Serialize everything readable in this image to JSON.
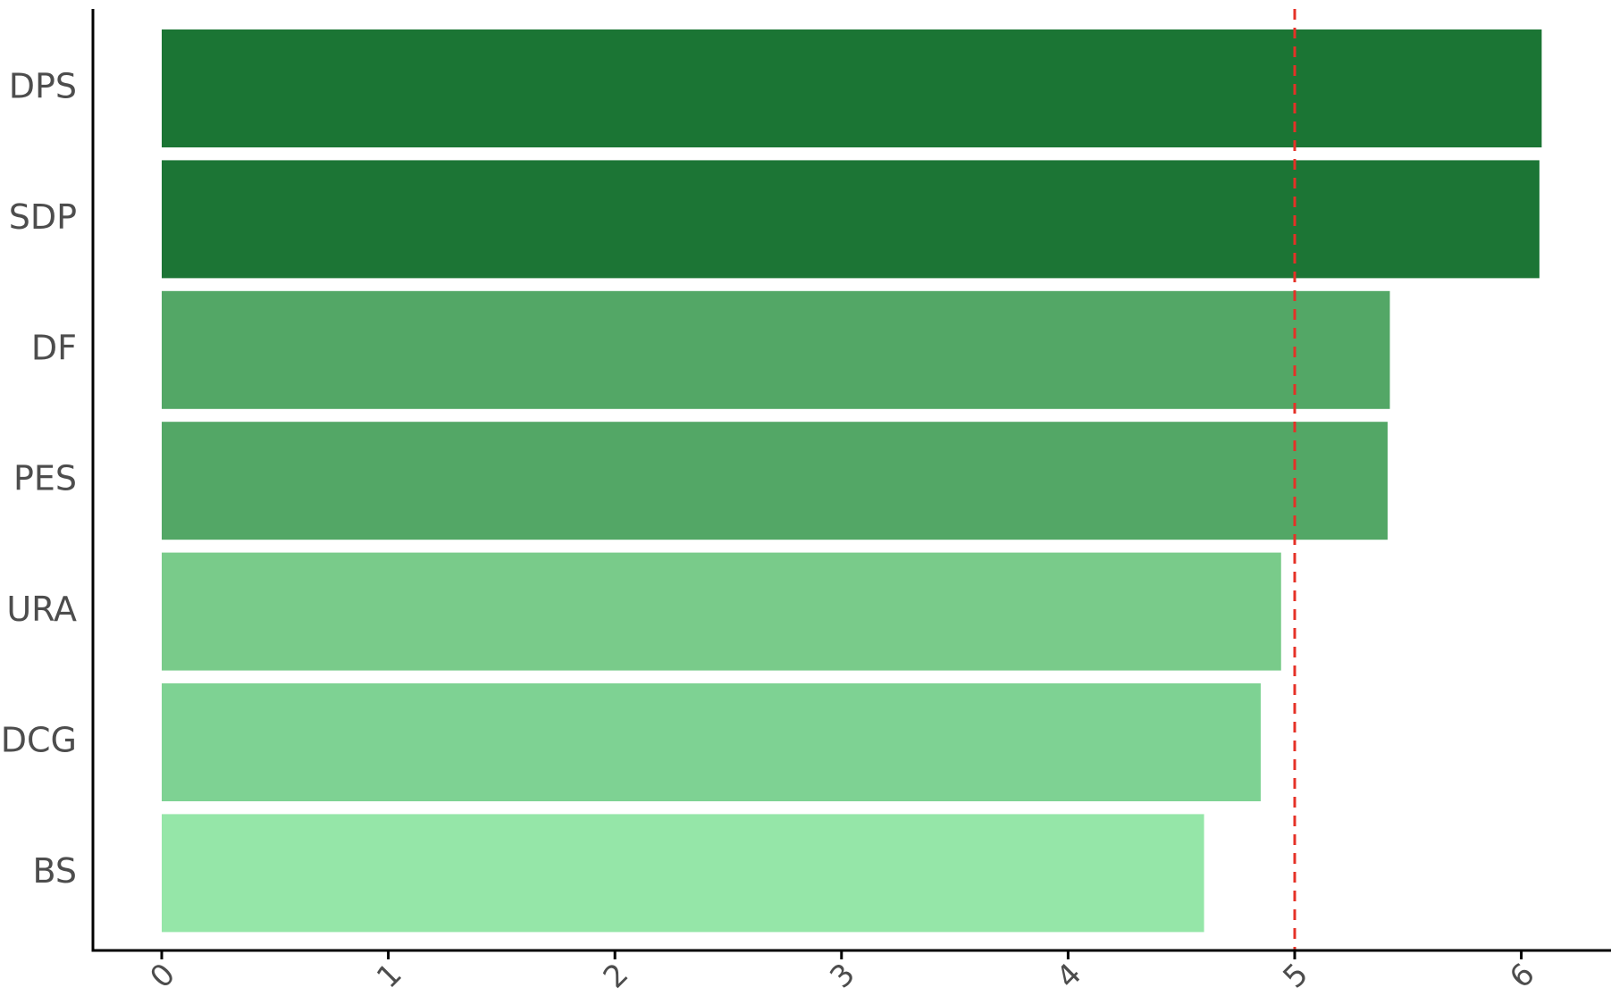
{
  "chart_data": {
    "type": "bar",
    "orientation": "horizontal",
    "title": "",
    "xlabel": "",
    "ylabel": "",
    "categories": [
      "DPS",
      "SDP",
      "DF",
      "PES",
      "URA",
      "DCG",
      "BS"
    ],
    "values": [
      6.09,
      6.08,
      5.42,
      5.41,
      4.94,
      4.85,
      4.6
    ],
    "bar_colors": [
      "#1b7534",
      "#1c7535",
      "#53a766",
      "#53a766",
      "#79cb8a",
      "#7ed293",
      "#95e6a8"
    ],
    "xlim": [
      -0.3,
      6.4
    ],
    "x_ticks": [
      "0",
      "1",
      "2",
      "3",
      "4",
      "5",
      "6"
    ],
    "x_tick_label_rotation": "45",
    "reference_line": {
      "x": 5,
      "style": "dashed",
      "color": "#e53127"
    },
    "grid": false,
    "legend": "none"
  }
}
